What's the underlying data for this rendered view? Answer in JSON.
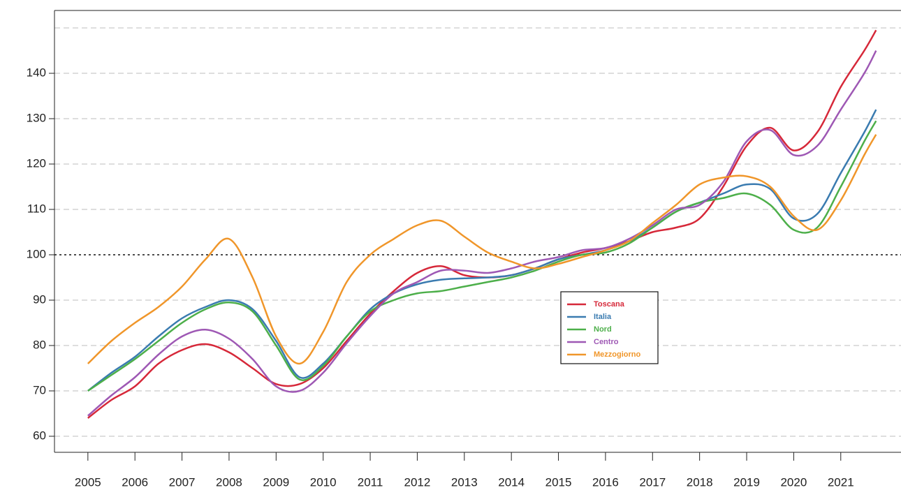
{
  "chart_data": {
    "type": "line",
    "x": [
      2005,
      2005.5,
      2006,
      2006.5,
      2007,
      2007.5,
      2008,
      2008.5,
      2009,
      2009.5,
      2010,
      2010.5,
      2011,
      2011.5,
      2012,
      2012.5,
      2013,
      2013.5,
      2014,
      2014.5,
      2015,
      2015.5,
      2016,
      2016.5,
      2017,
      2017.5,
      2018,
      2018.5,
      2019,
      2019.5,
      2020,
      2020.5,
      2021,
      2021.5,
      2021.75
    ],
    "series": [
      {
        "name": "Toscana",
        "color": "#d62839",
        "values": [
          64,
          68,
          71,
          76,
          79,
          80.3,
          78.5,
          75,
          71.5,
          71.5,
          75,
          81,
          87,
          92,
          96,
          97.5,
          95.5,
          95,
          95.5,
          97,
          99,
          100.5,
          101.5,
          103,
          105,
          106,
          108,
          115,
          124,
          128,
          123,
          127,
          137,
          145,
          149.5
        ]
      },
      {
        "name": "Italia",
        "color": "#3a7bb0",
        "values": [
          70,
          74,
          77.5,
          82,
          86,
          88.5,
          90,
          88,
          81,
          73,
          76,
          82,
          88,
          91.5,
          93.5,
          94.5,
          94.8,
          95,
          95.5,
          97,
          99,
          100,
          101,
          103,
          106,
          109.5,
          111.5,
          113.5,
          115.5,
          114.5,
          108,
          109,
          118,
          127,
          132
        ]
      },
      {
        "name": "Nord",
        "color": "#4daf4a",
        "values": [
          70,
          73.5,
          77,
          81,
          85,
          88,
          89.5,
          87.5,
          80,
          72.5,
          75.5,
          82,
          87.5,
          90,
          91.5,
          92,
          93,
          94,
          95,
          96.5,
          98.5,
          100,
          100.5,
          102.5,
          106,
          109.5,
          111.5,
          112.5,
          113.5,
          111,
          105.5,
          106,
          115,
          125,
          129.5
        ]
      },
      {
        "name": "Centro",
        "color": "#9e58b4",
        "values": [
          64.5,
          69,
          73,
          78,
          82,
          83.5,
          81.5,
          77,
          71,
          70,
          74,
          80.5,
          86.5,
          91.5,
          94,
          96.5,
          96.5,
          96,
          97,
          98.5,
          99.5,
          101,
          101.5,
          103.5,
          106.5,
          110,
          111,
          116,
          125,
          127.5,
          122,
          124,
          132,
          140,
          145
        ]
      },
      {
        "name": "Mezzogiorno",
        "color": "#f0962a",
        "values": [
          76,
          81,
          85,
          88.5,
          93,
          99,
          103.5,
          95,
          82,
          76,
          83,
          94,
          100,
          103.5,
          106.5,
          107.5,
          104,
          100.5,
          98.5,
          97,
          98,
          99.5,
          101,
          103,
          107,
          111,
          115.5,
          117,
          117.3,
          115,
          108.5,
          105.5,
          112,
          122,
          126.5
        ]
      }
    ],
    "xlim": [
      2004.29,
      2022.28
    ],
    "xticks": [
      2005,
      2006,
      2007,
      2008,
      2009,
      2010,
      2011,
      2012,
      2013,
      2014,
      2015,
      2016,
      2017,
      2018,
      2019,
      2020,
      2021
    ],
    "ylim": [
      56.46,
      153.85
    ],
    "yticks": [
      60,
      70,
      80,
      90,
      100,
      110,
      120,
      130,
      140
    ],
    "ygrid": [
      60,
      70,
      80,
      90,
      110,
      120,
      130,
      140,
      150
    ],
    "hline": 100,
    "grid": true
  }
}
